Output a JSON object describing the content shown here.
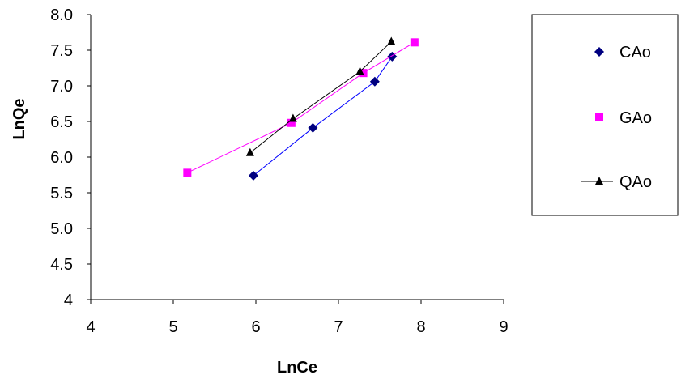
{
  "chart_data": {
    "type": "scatter",
    "xlabel": "LnCe",
    "ylabel": "LnQe",
    "xlim": [
      4,
      9
    ],
    "ylim": [
      4,
      8
    ],
    "x_ticks": [
      "4",
      "5",
      "6",
      "7",
      "8",
      "9"
    ],
    "y_ticks": [
      "4",
      "4.5",
      "5.0",
      "5.5",
      "6.0",
      "6.5",
      "7.0",
      "7.5",
      "8.0"
    ],
    "grid": false,
    "legend_position": "right",
    "series": [
      {
        "name": "CAo",
        "marker": "diamond",
        "color": "#000080",
        "line_color": "#0000ff",
        "x": [
          5.97,
          6.69,
          7.44,
          7.65
        ],
        "y": [
          5.74,
          6.41,
          7.06,
          7.41
        ]
      },
      {
        "name": "GAo",
        "marker": "square",
        "color": "#ff00ff",
        "line_color": "#ff00ff",
        "x": [
          5.17,
          6.43,
          7.3,
          7.92
        ],
        "y": [
          5.78,
          6.48,
          7.18,
          7.61
        ]
      },
      {
        "name": "QAo",
        "marker": "triangle",
        "color": "#000000",
        "line_color": "#000000",
        "x": [
          5.93,
          6.45,
          7.26,
          7.64
        ],
        "y": [
          6.06,
          6.54,
          7.2,
          7.62
        ]
      }
    ]
  }
}
